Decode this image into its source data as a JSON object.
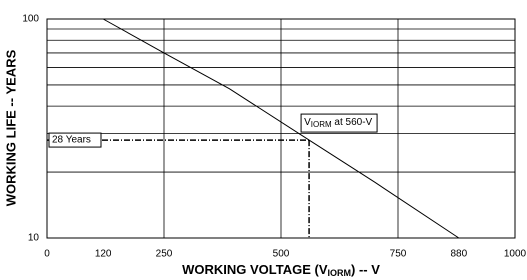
{
  "chart_data": {
    "type": "line",
    "x_label_parts": [
      "WORKING VOLTAGE (V",
      "IORM",
      ") -- V"
    ],
    "y_label": "WORKING LIFE -- YEARS",
    "x": [
      120,
      250,
      390,
      560,
      700,
      880
    ],
    "series": [
      {
        "color": "#000000",
        "values": [
          100,
          70,
          48,
          28,
          18,
          10
        ]
      }
    ],
    "xlim": [
      0,
      1000
    ],
    "xticks": [
      0,
      120,
      250,
      500,
      750,
      880,
      1000
    ],
    "x_gridlines": [
      250,
      500,
      750
    ],
    "ylim": [
      10,
      100
    ],
    "yticks": [
      10,
      100
    ],
    "log_y": true,
    "y_minor_gridlines": [
      20,
      30,
      40,
      50,
      60,
      70,
      80,
      90
    ],
    "reference": {
      "x": 560,
      "y": 28,
      "y_label": "28 Years",
      "point_label_parts": [
        "V",
        "IORM",
        " at 560-V"
      ]
    }
  }
}
